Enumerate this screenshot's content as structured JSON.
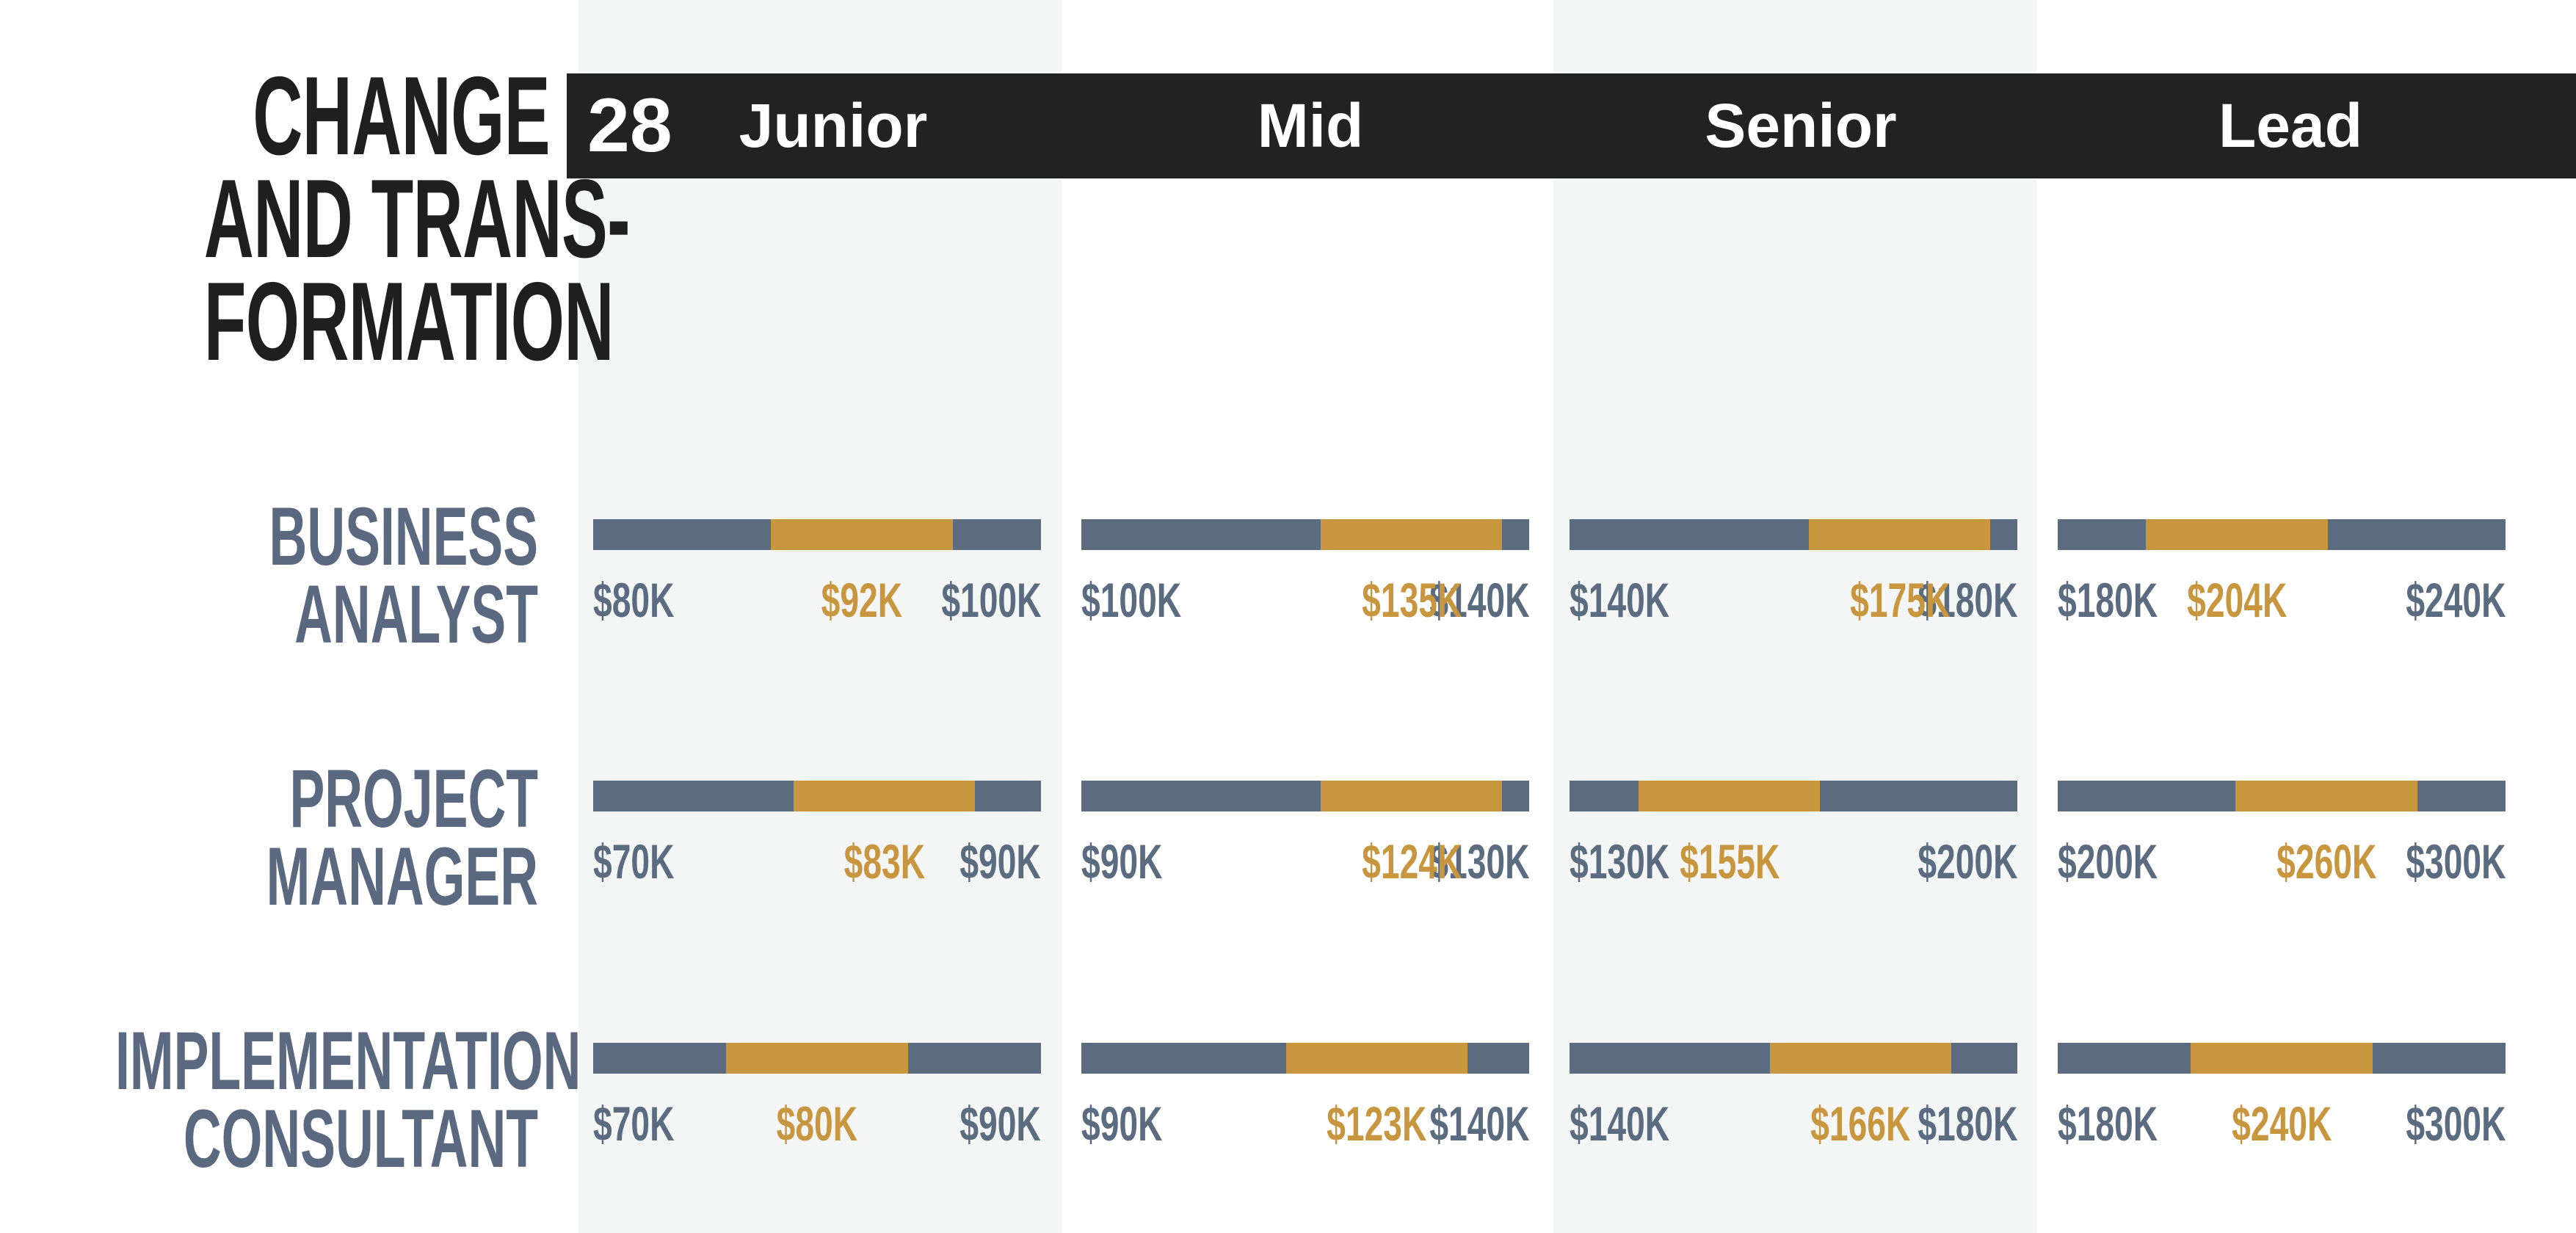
{
  "page_number": "28",
  "title_lines": [
    "CHANGE",
    "AND TRANS-",
    "FORMATION"
  ],
  "colors": {
    "header_bg": "#222222",
    "bar_base": "#5b6b80",
    "bar_range": "#c8963e",
    "label_slate": "#5b6b80",
    "accent_gold": "#c8963e",
    "column_shade": "#f4f6f6"
  },
  "chart_data": {
    "type": "bar",
    "categories": [
      "Junior",
      "Mid",
      "Senior",
      "Lead"
    ],
    "rows": [
      {
        "label_lines": [
          "BUSINESS",
          "ANALYST"
        ],
        "levels": [
          {
            "min": 80,
            "typical": 92,
            "max": 100,
            "min_label": "$80K",
            "typical_label": "$92K",
            "max_label": "$100K"
          },
          {
            "min": 100,
            "typical": 135,
            "max": 140,
            "min_label": "$100K",
            "typical_label": "$135K",
            "max_label": "$140K"
          },
          {
            "min": 140,
            "typical": 175,
            "max": 180,
            "min_label": "$140K",
            "typical_label": "$175K",
            "max_label": "$180K"
          },
          {
            "min": 180,
            "typical": 204,
            "max": 240,
            "min_label": "$180K",
            "typical_label": "$204K",
            "max_label": "$240K"
          }
        ]
      },
      {
        "label_lines": [
          "PROJECT",
          "MANAGER"
        ],
        "levels": [
          {
            "min": 70,
            "typical": 83,
            "max": 90,
            "min_label": "$70K",
            "typical_label": "$83K",
            "max_label": "$90K"
          },
          {
            "min": 90,
            "typical": 124,
            "max": 130,
            "min_label": "$90K",
            "typical_label": "$124K",
            "max_label": "$130K"
          },
          {
            "min": 130,
            "typical": 155,
            "max": 200,
            "min_label": "$130K",
            "typical_label": "$155K",
            "max_label": "$200K"
          },
          {
            "min": 200,
            "typical": 260,
            "max": 300,
            "min_label": "$200K",
            "typical_label": "$260K",
            "max_label": "$300K"
          }
        ]
      },
      {
        "label_lines": [
          "IMPLEMENTATION",
          "CONSULTANT"
        ],
        "levels": [
          {
            "min": 70,
            "typical": 80,
            "max": 90,
            "min_label": "$70K",
            "typical_label": "$80K",
            "max_label": "$90K"
          },
          {
            "min": 90,
            "typical": 123,
            "max": 140,
            "min_label": "$90K",
            "typical_label": "$123K",
            "max_label": "$140K"
          },
          {
            "min": 140,
            "typical": 166,
            "max": 180,
            "min_label": "$140K",
            "typical_label": "$166K",
            "max_label": "$180K"
          },
          {
            "min": 180,
            "typical": 240,
            "max": 300,
            "min_label": "$180K",
            "typical_label": "$240K",
            "max_label": "$300K"
          }
        ]
      }
    ]
  }
}
